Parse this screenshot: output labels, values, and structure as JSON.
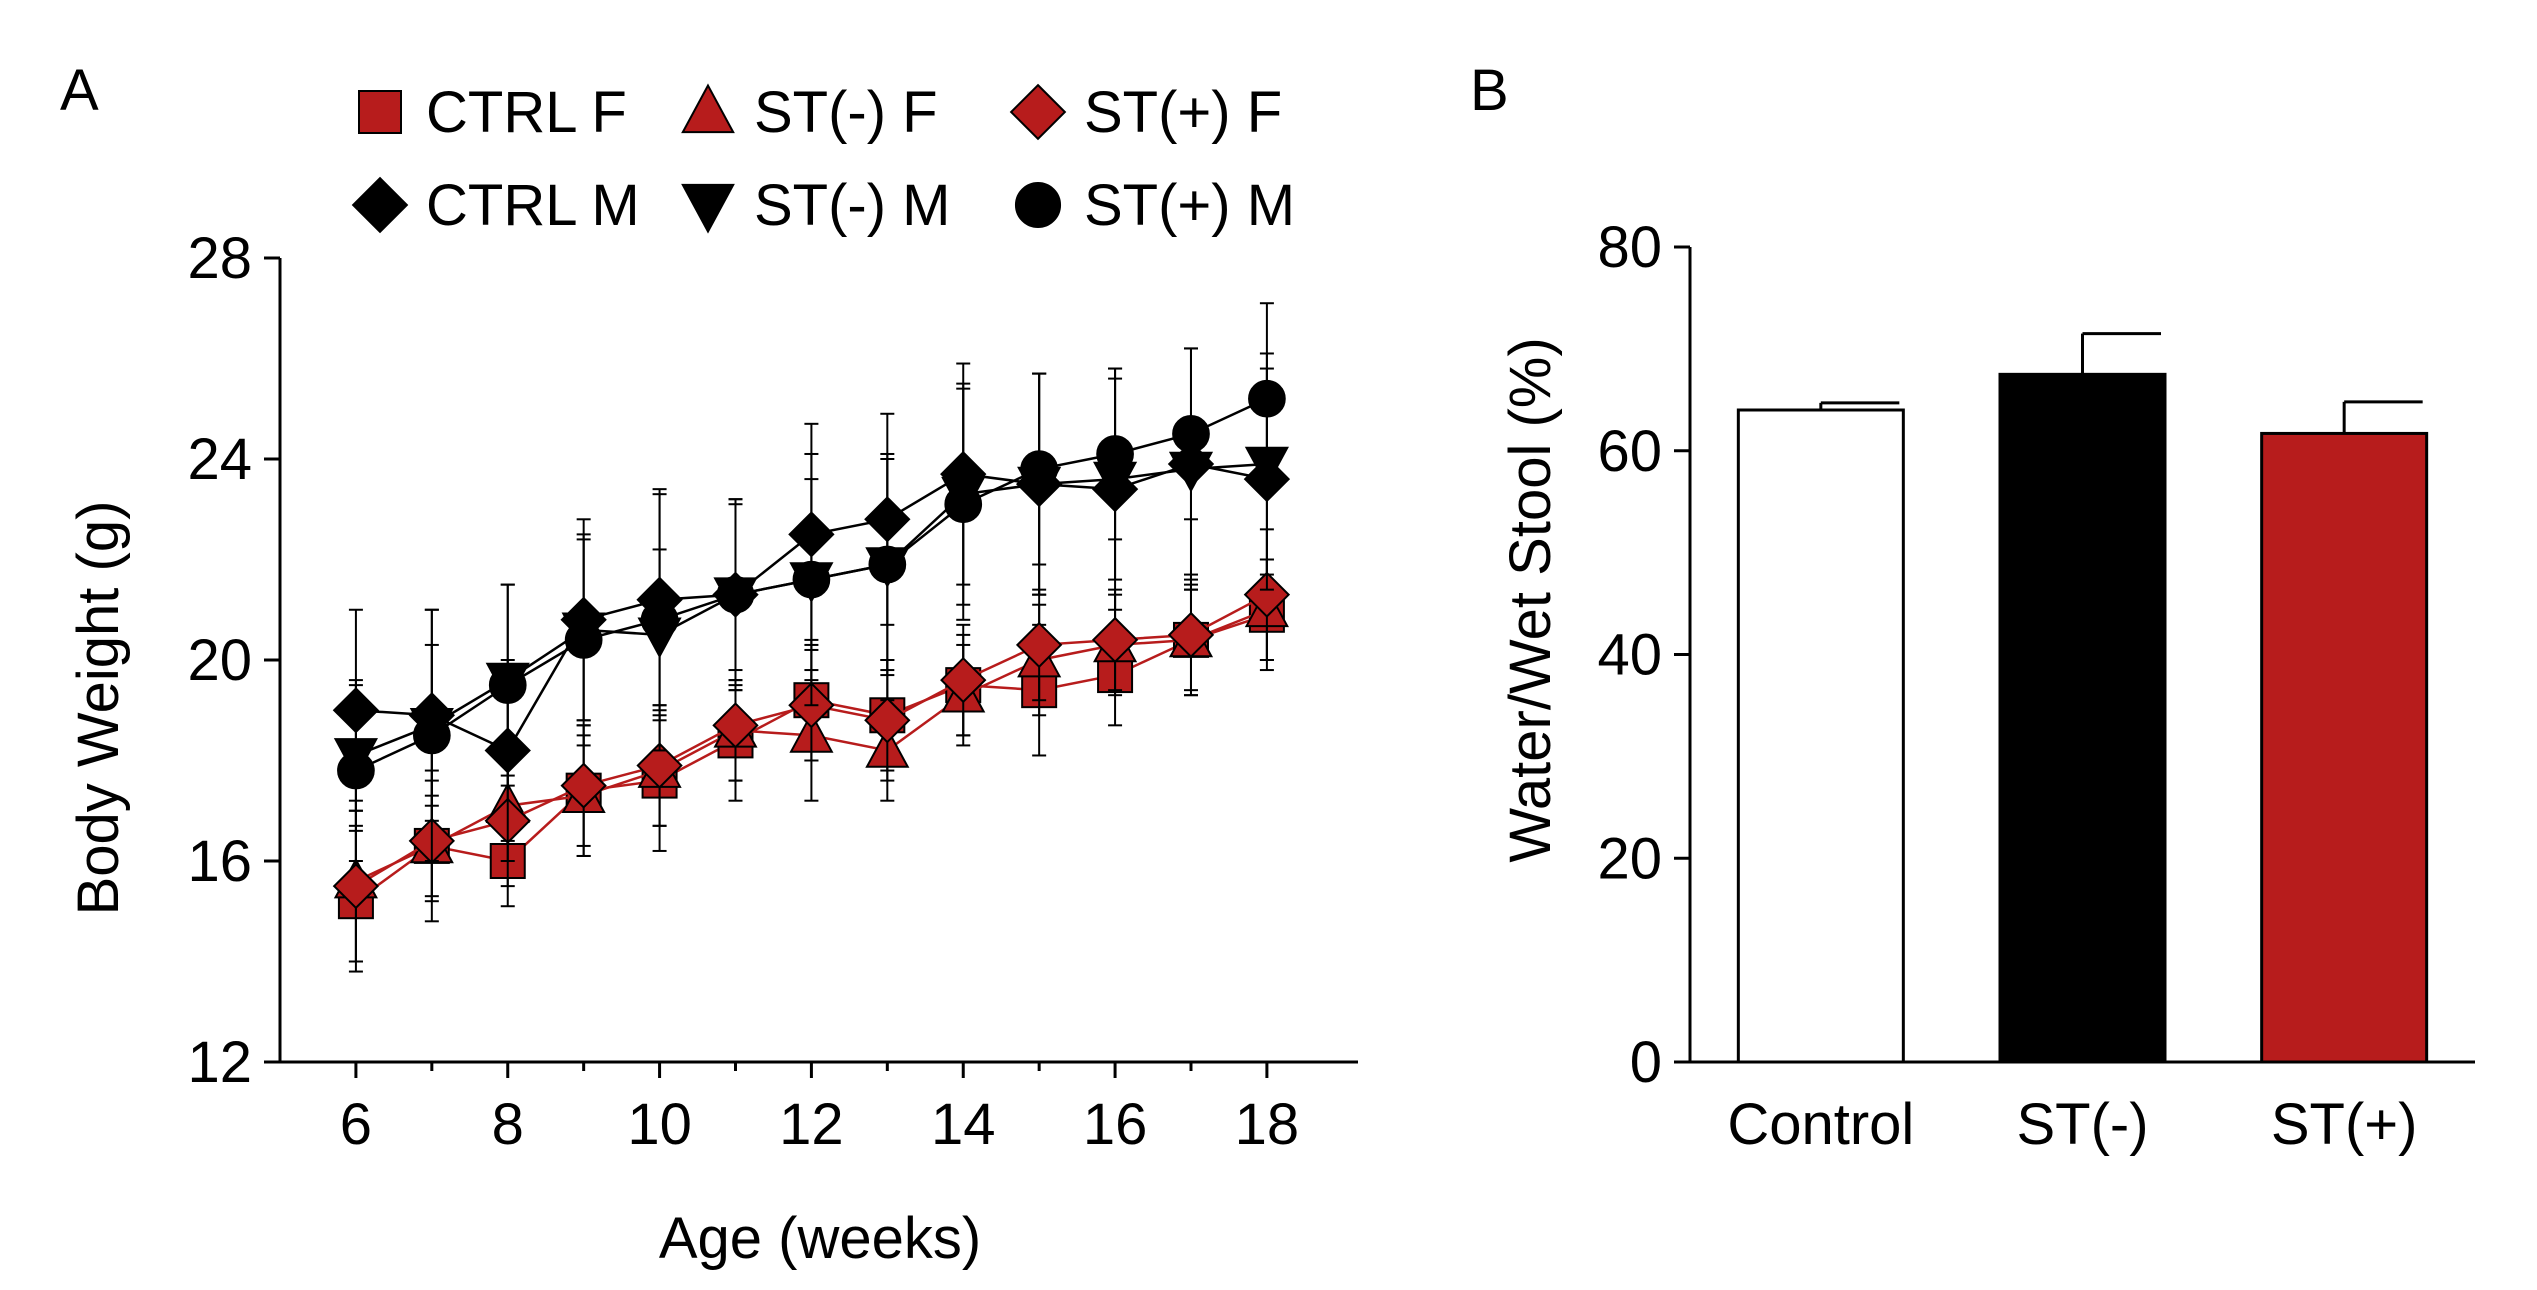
{
  "chart_data": [
    {
      "panel": "A",
      "type": "line",
      "xlabel": "Age (weeks)",
      "ylabel": "Body Weight (g)",
      "xlim": [
        5,
        19.2
      ],
      "ylim": [
        12,
        28
      ],
      "xticks": [
        6,
        8,
        10,
        12,
        14,
        16,
        18
      ],
      "yticks": [
        12,
        16,
        20,
        24,
        28
      ],
      "x": [
        6,
        7,
        8,
        9,
        10,
        11,
        12,
        13,
        14,
        15,
        16,
        17,
        18
      ],
      "series": [
        {
          "name": "CTRL F",
          "marker": "square",
          "color": "#b71c1c",
          "values": [
            15.2,
            16.3,
            16.0,
            17.4,
            17.6,
            18.4,
            19.2,
            18.9,
            19.5,
            19.4,
            19.7,
            20.4,
            20.9
          ],
          "errors": [
            1.4,
            1.5,
            0.9,
            1.3,
            1.4,
            1.2,
            1.2,
            1.1,
            1.0,
            1.3,
            1.0,
            1.1,
            1.1
          ]
        },
        {
          "name": "ST(-) F",
          "marker": "triangle-up",
          "color": "#b71c1c",
          "values": [
            15.6,
            16.3,
            17.1,
            17.3,
            17.8,
            18.6,
            18.5,
            18.2,
            19.3,
            20.0,
            20.3,
            20.4,
            21.0
          ],
          "errors": [
            1.6,
            1.0,
            1.1,
            1.2,
            1.1,
            1.0,
            1.3,
            1.0,
            1.0,
            1.1,
            1.0,
            1.0,
            1.0
          ]
        },
        {
          "name": "ST(+) F",
          "marker": "diamond",
          "color": "#b71c1c",
          "values": [
            15.5,
            16.4,
            16.8,
            17.5,
            17.9,
            18.7,
            19.1,
            18.8,
            19.6,
            20.3,
            20.4,
            20.5,
            21.3
          ],
          "errors": [
            1.5,
            1.2,
            1.3,
            1.2,
            1.2,
            1.1,
            1.1,
            1.2,
            1.1,
            1.1,
            1.0,
            1.2,
            1.3
          ]
        },
        {
          "name": "CTRL M",
          "marker": "diamond",
          "color": "#000000",
          "values": [
            19.0,
            18.9,
            18.2,
            20.8,
            21.2,
            21.3,
            22.5,
            22.8,
            23.7,
            23.5,
            23.4,
            23.9,
            23.6
          ],
          "errors": [
            2.0,
            2.1,
            1.8,
            2.0,
            2.1,
            1.9,
            2.2,
            2.1,
            2.2,
            2.2,
            2.4,
            2.3,
            2.2
          ]
        },
        {
          "name": "ST(-) M",
          "marker": "triangle-down",
          "color": "#000000",
          "values": [
            18.1,
            18.7,
            19.6,
            20.6,
            20.5,
            21.3,
            21.6,
            21.9,
            23.3,
            23.5,
            23.6,
            23.8,
            23.9
          ],
          "errors": [
            1.4,
            1.6,
            1.9,
            1.8,
            1.7,
            1.8,
            2.0,
            2.1,
            2.2,
            2.2,
            2.0,
            2.4,
            2.2
          ]
        },
        {
          "name": "ST(+) M",
          "marker": "circle",
          "color": "#000000",
          "values": [
            17.8,
            18.5,
            19.5,
            20.4,
            20.8,
            21.3,
            21.6,
            21.9,
            23.1,
            23.8,
            24.1,
            24.5,
            25.2
          ],
          "errors": [
            1.8,
            2.5,
            2.0,
            2.1,
            2.6,
            1.9,
            2.5,
            2.2,
            2.3,
            1.9,
            1.7,
            1.7,
            1.9
          ]
        }
      ],
      "legend": {
        "placement": "top",
        "rows": [
          [
            {
              "label": "CTRL F",
              "series": 0
            },
            {
              "label": "ST(-) F",
              "series": 1
            },
            {
              "label": "ST(+) F",
              "series": 2
            }
          ],
          [
            {
              "label": "CTRL M",
              "series": 3
            },
            {
              "label": "ST(-) M",
              "series": 4
            },
            {
              "label": "ST(+) M",
              "series": 5
            }
          ]
        ]
      }
    },
    {
      "panel": "B",
      "type": "bar",
      "xlabel": "",
      "ylabel": "Water/Wet Stool (%)",
      "ylim": [
        0,
        80
      ],
      "yticks": [
        0,
        20,
        40,
        60,
        80
      ],
      "categories": [
        "Control",
        "ST(-)",
        "ST(+)"
      ],
      "values": [
        64.0,
        67.5,
        61.7
      ],
      "errors": [
        0.7,
        4.0,
        3.1
      ],
      "colors": [
        "#ffffff",
        "#000000",
        "#b71c1c"
      ]
    }
  ]
}
